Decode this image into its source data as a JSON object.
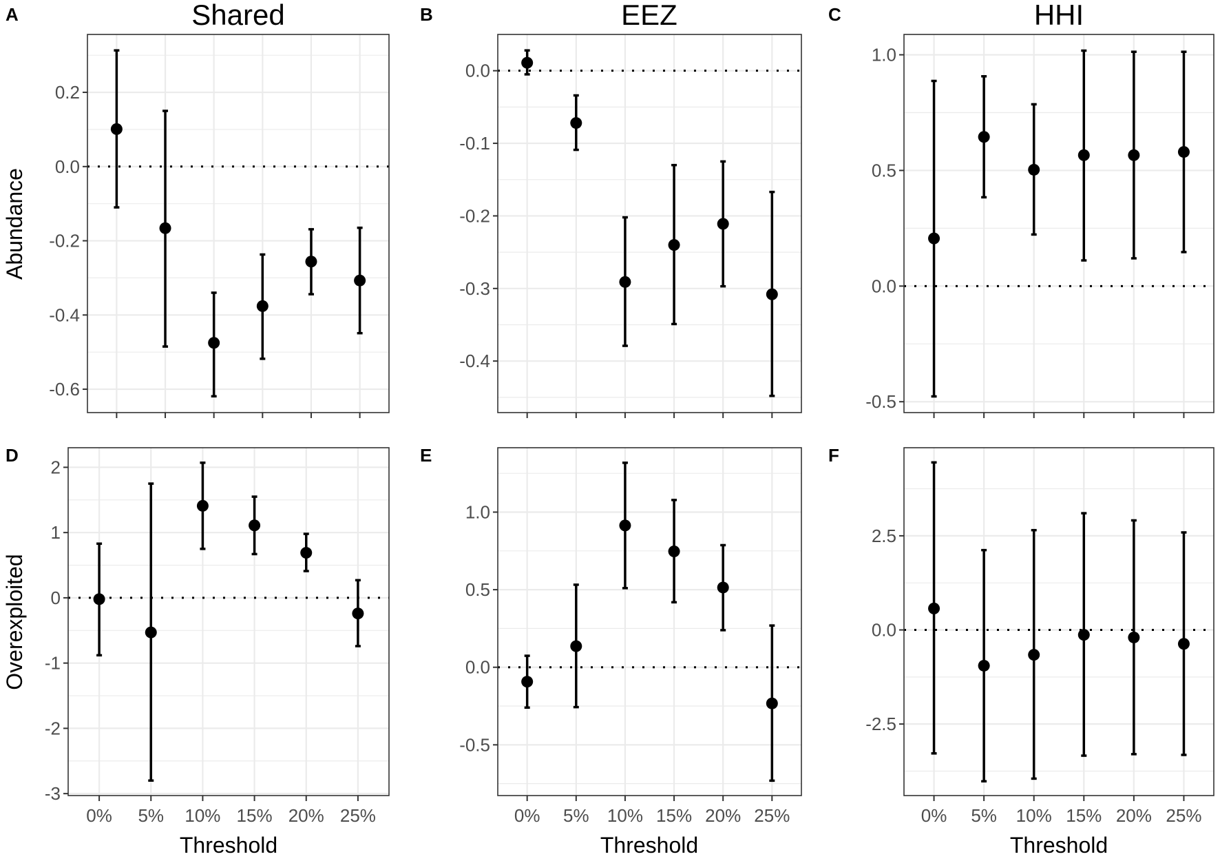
{
  "chart_data": {
    "type": "scatter",
    "subtype": "point-with-errorbars",
    "categories": [
      "0%",
      "5%",
      "10%",
      "15%",
      "20%",
      "25%"
    ],
    "xlabel": "Threshold",
    "column_titles": [
      "Shared",
      "EEZ",
      "HHI"
    ],
    "row_labels": [
      "Abundance",
      "Overexploited"
    ],
    "reference_line": 0,
    "grid": true,
    "panels": [
      {
        "letter": "A",
        "column": "Shared",
        "row": "Abundance",
        "ylim": [
          -0.663,
          0.356
        ],
        "yticks": [
          0.2,
          0.0,
          -0.2,
          -0.4,
          -0.6
        ],
        "ytick_labels": [
          "0.2",
          "0.0",
          "-0.2",
          "-0.4",
          "-0.6"
        ],
        "estimate": [
          0.101,
          -0.166,
          -0.475,
          -0.376,
          -0.256,
          -0.307
        ],
        "upper": [
          0.313,
          0.15,
          -0.34,
          -0.237,
          -0.169,
          -0.165
        ],
        "lower": [
          -0.11,
          -0.485,
          -0.619,
          -0.518,
          -0.344,
          -0.449
        ]
      },
      {
        "letter": "B",
        "column": "EEZ",
        "row": "Abundance",
        "ylim": [
          -0.471,
          0.05
        ],
        "yticks": [
          0.0,
          -0.1,
          -0.2,
          -0.3,
          -0.4
        ],
        "ytick_labels": [
          "0.0",
          "-0.1",
          "-0.2",
          "-0.3",
          "-0.4"
        ],
        "estimate": [
          0.011,
          -0.072,
          -0.291,
          -0.24,
          -0.211,
          -0.308
        ],
        "upper": [
          0.028,
          -0.034,
          -0.202,
          -0.13,
          -0.125,
          -0.167
        ],
        "lower": [
          -0.005,
          -0.109,
          -0.379,
          -0.349,
          -0.297,
          -0.448
        ]
      },
      {
        "letter": "C",
        "column": "HHI",
        "row": "Abundance",
        "ylim": [
          -0.547,
          1.088
        ],
        "yticks": [
          1.0,
          0.5,
          0.0,
          -0.5
        ],
        "ytick_labels": [
          "1.0",
          "0.5",
          "0.0",
          "-0.5"
        ],
        "estimate": [
          0.206,
          0.645,
          0.503,
          0.566,
          0.566,
          0.58
        ],
        "upper": [
          0.887,
          0.907,
          0.786,
          1.018,
          1.013,
          1.013
        ],
        "lower": [
          -0.477,
          0.384,
          0.223,
          0.111,
          0.12,
          0.147
        ]
      },
      {
        "letter": "D",
        "column": "Shared",
        "row": "Overexploited",
        "ylim": [
          -3.03,
          2.3
        ],
        "yticks": [
          2,
          1,
          0,
          -1,
          -2,
          -3
        ],
        "ytick_labels": [
          "2",
          "1",
          "0",
          "-1",
          "-2",
          "-3"
        ],
        "estimate": [
          -0.02,
          -0.53,
          1.41,
          1.11,
          0.69,
          -0.24
        ],
        "upper": [
          0.83,
          1.75,
          2.07,
          1.55,
          0.98,
          0.27
        ],
        "lower": [
          -0.88,
          -2.8,
          0.75,
          0.67,
          0.41,
          -0.74
        ]
      },
      {
        "letter": "E",
        "column": "EEZ",
        "row": "Overexploited",
        "ylim": [
          -0.827,
          1.415
        ],
        "yticks": [
          1.0,
          0.5,
          0.0,
          -0.5
        ],
        "ytick_labels": [
          "1.0",
          "0.5",
          "0.0",
          "-0.5"
        ],
        "estimate": [
          -0.093,
          0.136,
          0.914,
          0.747,
          0.514,
          -0.233
        ],
        "upper": [
          0.074,
          0.532,
          1.318,
          1.078,
          0.787,
          0.269
        ],
        "lower": [
          -0.26,
          -0.257,
          0.51,
          0.419,
          0.239,
          -0.731
        ]
      },
      {
        "letter": "F",
        "column": "HHI",
        "row": "Overexploited",
        "ylim": [
          -4.4,
          4.84
        ],
        "yticks": [
          2.5,
          0.0,
          -2.5
        ],
        "ytick_labels": [
          "2.5",
          "0.0",
          "-2.5"
        ],
        "estimate": [
          0.57,
          -0.95,
          -0.66,
          -0.13,
          -0.2,
          -0.37
        ],
        "upper": [
          4.45,
          2.12,
          2.65,
          3.1,
          2.91,
          2.59
        ],
        "lower": [
          -3.28,
          -4.02,
          -3.95,
          -3.34,
          -3.3,
          -3.32
        ]
      }
    ]
  }
}
